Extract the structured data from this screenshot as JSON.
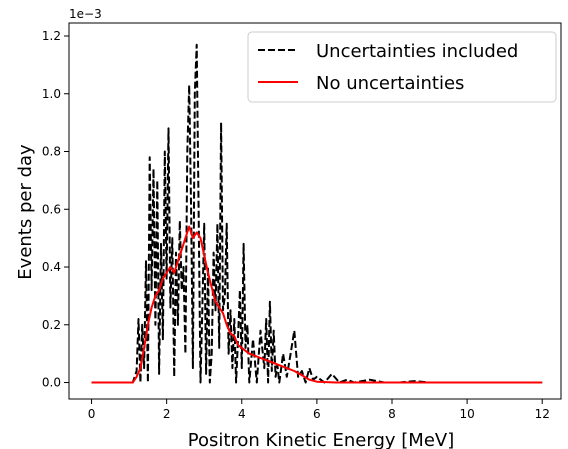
{
  "chart_data": {
    "type": "line",
    "title": "",
    "xlabel": "Positron Kinetic Energy [MeV]",
    "ylabel": "Events per day",
    "y_offset_label": "1e−3",
    "xlim": [
      -0.6,
      12.5
    ],
    "ylim": [
      -0.057,
      1.245
    ],
    "x_ticks": [
      0,
      2,
      4,
      6,
      8,
      10,
      12
    ],
    "x_tick_labels": [
      "0",
      "2",
      "4",
      "6",
      "8",
      "10",
      "12"
    ],
    "y_ticks": [
      0.0,
      0.2,
      0.4,
      0.6,
      0.8,
      1.0,
      1.2
    ],
    "y_tick_labels": [
      "0.0",
      "0.2",
      "0.4",
      "0.6",
      "0.8",
      "1.0",
      "1.2"
    ],
    "y_units_note": "values in units of 1e-3",
    "grid": false,
    "legend_position": "top-right",
    "series": [
      {
        "name": "Uncertainties included",
        "color": "#000000",
        "dash": "dashed",
        "x": [
          0,
          1.1,
          1.2,
          1.25,
          1.3,
          1.35,
          1.4,
          1.45,
          1.5,
          1.55,
          1.6,
          1.65,
          1.7,
          1.75,
          1.8,
          1.85,
          1.9,
          1.95,
          2.0,
          2.05,
          2.1,
          2.15,
          2.2,
          2.25,
          2.3,
          2.35,
          2.4,
          2.45,
          2.5,
          2.55,
          2.6,
          2.65,
          2.7,
          2.75,
          2.8,
          2.85,
          2.9,
          2.95,
          3.0,
          3.05,
          3.1,
          3.15,
          3.2,
          3.25,
          3.3,
          3.35,
          3.4,
          3.45,
          3.5,
          3.55,
          3.6,
          3.65,
          3.7,
          3.75,
          3.8,
          3.85,
          3.9,
          3.95,
          4.0,
          4.05,
          4.1,
          4.15,
          4.2,
          4.3,
          4.4,
          4.5,
          4.6,
          4.65,
          4.7,
          4.75,
          4.8,
          4.85,
          4.9,
          4.95,
          5.0,
          5.1,
          5.2,
          5.3,
          5.4,
          5.5,
          5.6,
          5.7,
          5.8,
          5.9,
          6.0,
          6.2,
          6.4,
          6.6,
          6.8,
          7.0,
          7.4,
          7.8,
          8.2,
          8.6,
          9.0,
          9.5,
          10.0,
          10.5,
          11.0,
          11.5,
          12.0
        ],
        "y": [
          0.0,
          0.0,
          0.04,
          0.22,
          0.0,
          0.2,
          0.05,
          0.42,
          0.0,
          0.78,
          0.32,
          0.74,
          0.2,
          0.7,
          0.03,
          0.48,
          0.15,
          0.8,
          0.36,
          0.88,
          0.26,
          0.5,
          0.02,
          0.45,
          0.2,
          0.56,
          0.32,
          0.4,
          0.1,
          0.8,
          1.03,
          0.6,
          0.05,
          1.0,
          1.17,
          0.6,
          0.0,
          0.25,
          0.55,
          0.03,
          0.4,
          0.0,
          0.1,
          0.45,
          0.25,
          0.55,
          0.12,
          0.9,
          0.25,
          0.3,
          0.55,
          0.1,
          0.25,
          0.05,
          0.22,
          0.0,
          0.15,
          0.32,
          0.05,
          0.48,
          0.12,
          0.2,
          0.0,
          0.15,
          0.0,
          0.18,
          0.05,
          0.22,
          0.0,
          0.28,
          0.04,
          0.18,
          0.02,
          0.06,
          0.0,
          0.1,
          0.02,
          0.1,
          0.18,
          0.02,
          0.04,
          0.0,
          0.05,
          0.01,
          0.02,
          0.0,
          0.03,
          0.0,
          0.01,
          0.0,
          0.01,
          0.0,
          0.0,
          0.005,
          0.0,
          0.0,
          0.0,
          0.0,
          0.0,
          0.0,
          0.0
        ]
      },
      {
        "name": "No uncertainties",
        "color": "#ff0000",
        "dash": "solid",
        "x": [
          0,
          1.1,
          1.2,
          1.3,
          1.4,
          1.5,
          1.6,
          1.7,
          1.8,
          1.9,
          2.0,
          2.1,
          2.2,
          2.3,
          2.4,
          2.5,
          2.6,
          2.7,
          2.8,
          2.9,
          3.0,
          3.1,
          3.2,
          3.3,
          3.4,
          3.5,
          3.6,
          3.7,
          3.8,
          3.9,
          4.0,
          4.2,
          4.4,
          4.6,
          4.8,
          5.0,
          5.2,
          5.4,
          5.6,
          5.8,
          6.0,
          6.5,
          7.0,
          8.0,
          10.0,
          12.0
        ],
        "y": [
          0.0,
          0.0,
          0.02,
          0.05,
          0.12,
          0.2,
          0.26,
          0.3,
          0.32,
          0.36,
          0.38,
          0.4,
          0.38,
          0.42,
          0.46,
          0.5,
          0.54,
          0.5,
          0.52,
          0.5,
          0.44,
          0.38,
          0.33,
          0.28,
          0.26,
          0.24,
          0.2,
          0.17,
          0.16,
          0.13,
          0.12,
          0.1,
          0.09,
          0.08,
          0.07,
          0.06,
          0.05,
          0.04,
          0.025,
          0.01,
          0.003,
          0.0,
          0.0,
          0.0,
          0.0,
          0.0
        ]
      }
    ]
  }
}
